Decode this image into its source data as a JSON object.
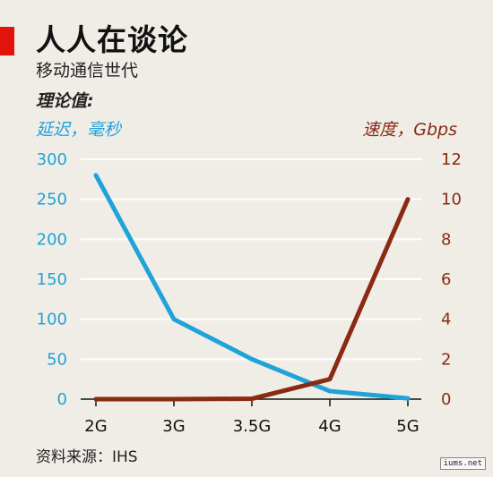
{
  "title": "人人在谈论",
  "subtitle": "移动通信世代",
  "note": "理论值:",
  "source": "资料来源：IHS",
  "watermark": "iums.net",
  "colors": {
    "latency": "#1fa3d8",
    "speed": "#8a2a12",
    "brand": "#e3120b",
    "grid": "#ffffff",
    "background": "#f0ede7"
  },
  "chart_data": {
    "type": "line",
    "categories": [
      "2G",
      "3G",
      "3.5G",
      "4G",
      "5G"
    ],
    "series": [
      {
        "name": "延迟，毫秒",
        "axis": "left",
        "values": [
          280,
          100,
          50,
          10,
          1
        ]
      },
      {
        "name": "速度，Gbps",
        "axis": "right",
        "values": [
          0,
          0,
          0.02,
          1,
          10
        ]
      }
    ],
    "y_left": {
      "label": "延迟，毫秒",
      "ticks": [
        "0",
        "50",
        "100",
        "150",
        "200",
        "250",
        "300"
      ],
      "range": [
        0,
        300
      ]
    },
    "y_right": {
      "label": "速度，Gbps",
      "ticks": [
        "0",
        "2",
        "4",
        "6",
        "8",
        "10",
        "12"
      ],
      "range": [
        0,
        12
      ]
    },
    "grid": true
  }
}
